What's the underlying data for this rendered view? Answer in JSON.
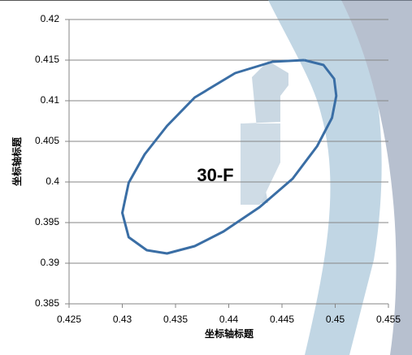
{
  "chart_data": {
    "type": "line-scatter",
    "x_label": "坐标轴标题",
    "y_label": "坐标轴标题",
    "annotation": "30-F",
    "xlim": [
      0.425,
      0.455
    ],
    "xticks": [
      0.425,
      0.43,
      0.435,
      0.44,
      0.445,
      0.45,
      0.455
    ],
    "ylim": [
      0.385,
      0.42
    ],
    "yticks": [
      0.385,
      0.39,
      0.395,
      0.4,
      0.405,
      0.41,
      0.415,
      0.42
    ],
    "grid": true,
    "series": [
      {
        "color": "#3a6ea5",
        "x": [
          0.4471,
          0.4489,
          0.4499,
          0.4501,
          0.4497,
          0.4483,
          0.446,
          0.4429,
          0.4395,
          0.4368,
          0.4342,
          0.4323,
          0.4306,
          0.43,
          0.4306,
          0.4321,
          0.4342,
          0.4368,
          0.4406,
          0.4441,
          0.4471
        ],
        "values": [
          0.415,
          0.4144,
          0.4127,
          0.4106,
          0.4079,
          0.4044,
          0.4004,
          0.3969,
          0.3939,
          0.3921,
          0.3912,
          0.3916,
          0.3932,
          0.3962,
          0.3999,
          0.4034,
          0.4069,
          0.4104,
          0.4134,
          0.4148,
          0.415
        ]
      }
    ]
  }
}
